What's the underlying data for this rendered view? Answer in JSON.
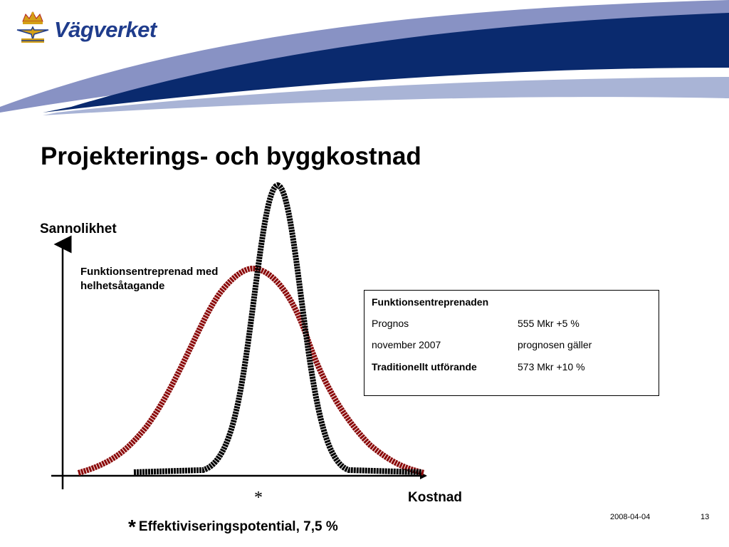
{
  "header": {
    "brand_name": "Vägverket",
    "logo_icon": "crown-emblem-icon",
    "colors": {
      "brand_blue": "#1f3c8c",
      "dark_blue": "#0a2a6e",
      "light_blue": "#a9b4d6"
    }
  },
  "slide": {
    "title": "Projekterings- och byggkostnad",
    "date": "2008-04-04",
    "page_number": "13"
  },
  "diagram": {
    "y_axis_label": "Sannolikhet",
    "x_axis_label": "Kostnad",
    "wide_curve_label": "Funktionsentreprenad med helhetsåtagande",
    "asterisk_mark": "*",
    "footnote_star": "*",
    "footnote_text": "Effektiviseringspotential, 7,5 %",
    "curve_colors": {
      "wide": "#8b0a0a",
      "narrow": "#000000"
    }
  },
  "info_box": {
    "heading": "Funktionsentreprenaden",
    "rows": [
      {
        "label": "Prognos",
        "value": "555 Mkr +5 %"
      },
      {
        "label": "november 2007",
        "value": "prognosen gäller"
      },
      {
        "label": "Traditionellt utförande",
        "value": "573 Mkr +10 %"
      }
    ]
  }
}
